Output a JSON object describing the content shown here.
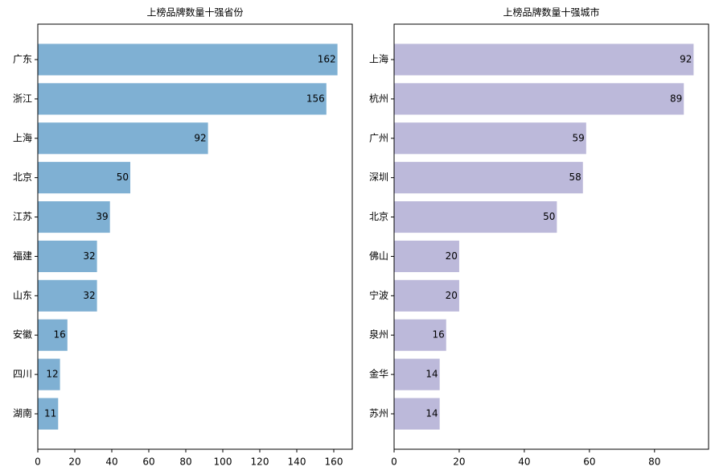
{
  "chart_data": [
    {
      "type": "barh",
      "title": "上榜品牌数量十强省份",
      "categories": [
        "广东",
        "浙江",
        "上海",
        "北京",
        "江苏",
        "福建",
        "山东",
        "安徽",
        "四川",
        "湖南"
      ],
      "values": [
        162,
        156,
        92,
        50,
        39,
        32,
        32,
        16,
        12,
        11
      ],
      "color": "#7fb0d3",
      "xlim": [
        0,
        170
      ],
      "xticks": [
        0,
        20,
        40,
        60,
        80,
        100,
        120,
        140,
        160
      ]
    },
    {
      "type": "barh",
      "title": "上榜品牌数量十强城市",
      "categories": [
        "上海",
        "杭州",
        "广州",
        "深圳",
        "北京",
        "佛山",
        "宁波",
        "泉州",
        "金华",
        "苏州"
      ],
      "values": [
        92,
        89,
        59,
        58,
        50,
        20,
        20,
        16,
        14,
        14
      ],
      "color": "#bcb9da",
      "xlim": [
        0,
        96.6
      ],
      "xticks": [
        0,
        20,
        40,
        60,
        80
      ]
    }
  ]
}
